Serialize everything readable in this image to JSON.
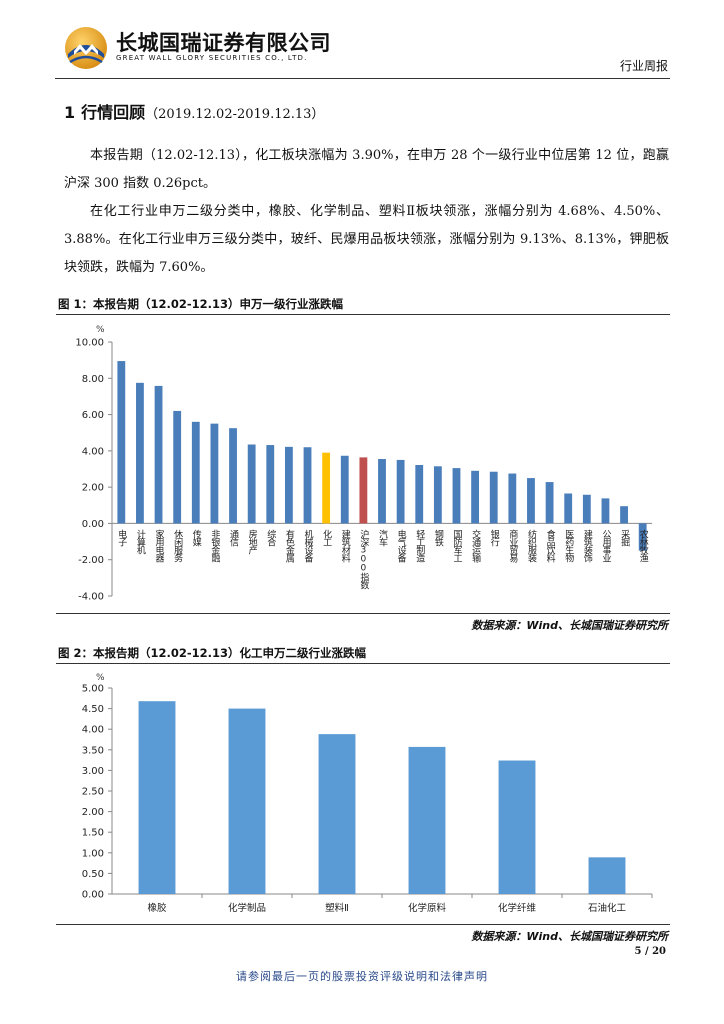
{
  "header": {
    "company_cn": "长城国瑞证券有限公司",
    "company_en": "GREAT WALL GLORY SECURITIES CO., LTD.",
    "report_type": "行业周报"
  },
  "section": {
    "number": "1",
    "title": "行情回顾",
    "date_range": "（2019.12.02-2019.12.13）"
  },
  "paragraphs": [
    "本报告期（12.02-12.13），化工板块涨幅为 3.90%，在申万 28 个一级行业中位居第 12 位，跑赢沪深 300 指数 0.26pct。",
    "在化工行业申万二级分类中，橡胶、化学制品、塑料Ⅱ板块领涨，涨幅分别为 4.68%、4.50%、3.88%。在化工行业申万三级分类中，玻纤、民爆用品板块领涨，涨幅分别为 9.13%、8.13%，钾肥板块领跌，跌幅为 7.60%。"
  ],
  "figure1": {
    "title": "图 1：本报告期（12.02-12.13）申万一级行业涨跌幅",
    "source": "数据来源：Wind、长城国瑞证券研究所",
    "unit": "%"
  },
  "figure2": {
    "title": "图 2：本报告期（12.02-12.13）化工申万二级行业涨跌幅",
    "source": "数据来源：Wind、长城国瑞证券研究所",
    "unit": "%"
  },
  "chart_data": [
    {
      "type": "bar",
      "ylabel": "%",
      "ylim": [
        -4,
        10
      ],
      "yticks": [
        "10.00",
        "8.00",
        "6.00",
        "4.00",
        "2.00",
        "0.00",
        "-2.00",
        "-4.00"
      ],
      "categories": [
        "电子",
        "计算机",
        "家用电器",
        "休闲服务",
        "传媒",
        "非银金融",
        "通信",
        "房地产",
        "综合",
        "有色金属",
        "机械设备",
        "化工",
        "建筑材料",
        "沪深300指数",
        "汽车",
        "电气设备",
        "轻工制造",
        "钢铁",
        "国防军工",
        "交通运输",
        "银行",
        "商业贸易",
        "纺织服装",
        "食品饮料",
        "医药生物",
        "建筑装饰",
        "公用事业",
        "采掘",
        "农林牧渔"
      ],
      "values": [
        8.95,
        7.75,
        7.58,
        6.2,
        5.6,
        5.5,
        5.25,
        4.35,
        4.32,
        4.22,
        4.2,
        3.9,
        3.73,
        3.64,
        3.55,
        3.5,
        3.22,
        3.15,
        3.05,
        2.9,
        2.85,
        2.75,
        2.5,
        2.28,
        1.65,
        1.58,
        1.38,
        0.95,
        -1.5
      ],
      "colors": [
        "#4a7ebb",
        "#4a7ebb",
        "#4a7ebb",
        "#4a7ebb",
        "#4a7ebb",
        "#4a7ebb",
        "#4a7ebb",
        "#4a7ebb",
        "#4a7ebb",
        "#4a7ebb",
        "#4a7ebb",
        "#ffc000",
        "#4a7ebb",
        "#c0504d",
        "#4a7ebb",
        "#4a7ebb",
        "#4a7ebb",
        "#4a7ebb",
        "#4a7ebb",
        "#4a7ebb",
        "#4a7ebb",
        "#4a7ebb",
        "#4a7ebb",
        "#4a7ebb",
        "#4a7ebb",
        "#4a7ebb",
        "#4a7ebb",
        "#4a7ebb",
        "#4a7ebb"
      ],
      "grid": false
    },
    {
      "type": "bar",
      "ylabel": "%",
      "ylim": [
        0,
        5
      ],
      "yticks": [
        "5.00",
        "4.50",
        "4.00",
        "3.50",
        "3.00",
        "2.50",
        "2.00",
        "1.50",
        "1.00",
        "0.50",
        "0.00"
      ],
      "categories": [
        "橡胶",
        "化学制品",
        "塑料Ⅱ",
        "化学原料",
        "化学纤维",
        "石油化工"
      ],
      "values": [
        4.68,
        4.5,
        3.88,
        3.57,
        3.24,
        0.89
      ],
      "color": "#5b9bd5",
      "grid": false
    }
  ],
  "footer": {
    "page": "5 / 20",
    "disclaimer": "请参阅最后一页的股票投资评级说明和法律声明"
  },
  "colors": {
    "bar_blue": "#4a7ebb",
    "highlight_chem": "#ffc000",
    "highlight_index": "#c0504d",
    "logo_gold": "#e0a030",
    "logo_blue": "#1f4e9a"
  }
}
